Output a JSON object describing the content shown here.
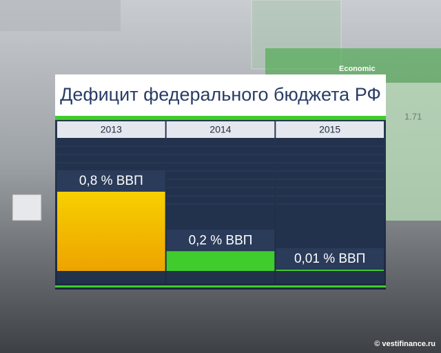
{
  "chart_data": {
    "type": "bar",
    "title": "Дефицит федерального бюджета РФ",
    "categories": [
      "2013",
      "2014",
      "2015"
    ],
    "values": [
      0.8,
      0.2,
      0.01
    ],
    "value_labels": [
      "0,8 % ВВП",
      "0,2 % ВВП",
      "0,01 % ВВП"
    ],
    "colors": [
      "#f2b600",
      "#3fcc2c",
      "#3fcc2c"
    ]
  },
  "background": {
    "texts": [
      "Economic",
      "1.71"
    ]
  },
  "footer": {
    "credit": "© vestifinance.ru"
  }
}
